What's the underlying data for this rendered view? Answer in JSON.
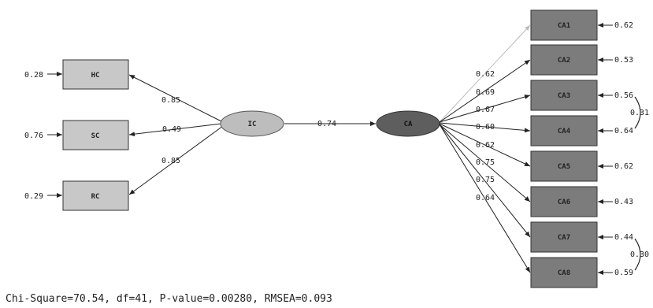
{
  "colors": {
    "left_box": "#c8c8c8",
    "right_box": "#7c7c7c",
    "ic_node": "#bdbdbd",
    "ca_node": "#5e5e5e",
    "line": "#222222",
    "faint_line": "#bbbbbb"
  },
  "left_indicators": [
    {
      "label": "HC",
      "error": "0.28",
      "loading": "0.85"
    },
    {
      "label": "SC",
      "error": "0.76",
      "loading": "0.49"
    },
    {
      "label": "RC",
      "error": "0.29",
      "loading": "0.85"
    }
  ],
  "ic_node": {
    "label": "IC"
  },
  "ca_node": {
    "label": "CA"
  },
  "path": {
    "value": "0.74"
  },
  "right_indicators": [
    {
      "label": "CA1",
      "error": "0.62",
      "loading": "0.62"
    },
    {
      "label": "CA2",
      "error": "0.53",
      "loading": "0.69"
    },
    {
      "label": "CA3",
      "error": "0.56",
      "loading": "0.67"
    },
    {
      "label": "CA4",
      "error": "0.64",
      "loading": "0.60"
    },
    {
      "label": "CA5",
      "error": "0.62",
      "loading": "0.62"
    },
    {
      "label": "CA6",
      "error": "0.43",
      "loading": "0.75"
    },
    {
      "label": "CA7",
      "error": "0.44",
      "loading": "0.75"
    },
    {
      "label": "CA8",
      "error": "0.59",
      "loading": "0.64"
    }
  ],
  "covariances": [
    {
      "between": "CA3-CA4",
      "value": "0.31"
    },
    {
      "between": "CA7-CA8",
      "value": "0.30"
    }
  ],
  "fit_text": "Chi-Square=70.54, df=41, P-value=0.00280, RMSEA=0.093"
}
